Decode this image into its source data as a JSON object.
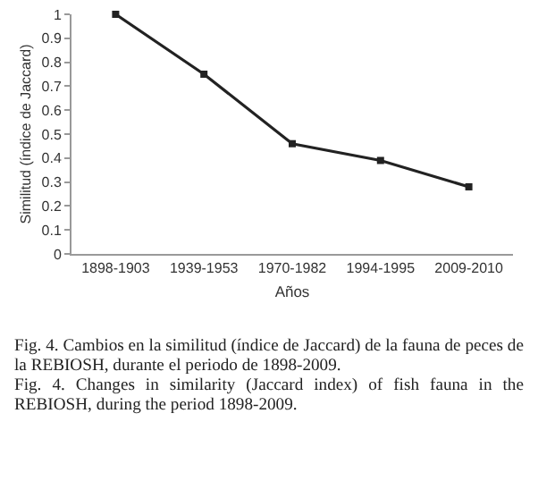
{
  "chart_data": {
    "type": "line",
    "xlabel": "Años",
    "ylabel": "Similitud (índice de Jaccard)",
    "categories": [
      "1898-1903",
      "1939-1953",
      "1970-1982",
      "1994-1995",
      "2009-2010"
    ],
    "series": [
      {
        "color": "#222222",
        "values": [
          1,
          0.75,
          0.46,
          0.39,
          0.28
        ]
      }
    ],
    "ylim": [
      0,
      1
    ],
    "yticks": [
      0,
      0.1,
      0.2,
      0.3,
      0.4,
      0.5,
      0.6,
      0.7,
      0.8,
      0.9,
      1
    ],
    "grid": false,
    "marker": "square",
    "line_style": "solid",
    "annotations": [
      "Fig. 4. Cambios en la similitud (índice de Jaccard) de la fauna de peces de la REBIOSH, durante el periodo de 1898-2009.",
      "Fig. 4. Changes in similarity (Jaccard index) of fish fauna in the REBIOSH, during the period 1898-2009."
    ]
  }
}
